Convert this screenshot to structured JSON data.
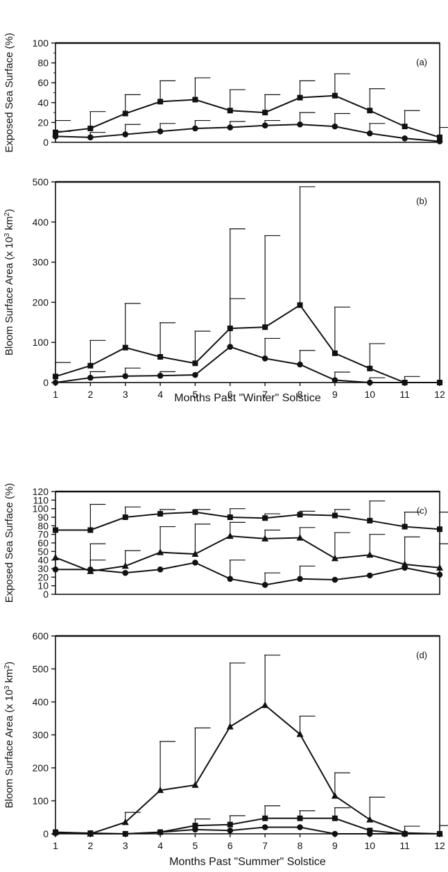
{
  "chart_data": [
    {
      "id": "a",
      "type": "line",
      "panel_label": "(a)",
      "ylabel": "Exposed Sea Surface (%)",
      "xlabel": "",
      "ylim": [
        0,
        100
      ],
      "yticks": [
        0,
        20,
        40,
        60,
        80,
        100
      ],
      "x": [
        1,
        2,
        3,
        4,
        5,
        6,
        7,
        8,
        9,
        10,
        11,
        12
      ],
      "series": [
        {
          "marker": "square",
          "values": [
            10,
            14,
            29,
            41,
            43,
            32,
            30,
            45,
            47,
            32,
            16,
            5
          ],
          "err": [
            12,
            17,
            19,
            21,
            22,
            21,
            18,
            17,
            22,
            22,
            16,
            10
          ]
        },
        {
          "marker": "circle",
          "values": [
            6,
            5,
            8,
            11,
            14,
            15,
            17,
            18,
            16,
            9,
            4,
            1
          ],
          "err": [
            5,
            5,
            10,
            8,
            8,
            6,
            5,
            12,
            13,
            10,
            0,
            0
          ]
        }
      ]
    },
    {
      "id": "b",
      "type": "line",
      "panel_label": "(b)",
      "ylabel": "Bloom Surface Area (x 10³ km²)",
      "xlabel": "Months Past \"Winter\" Solstice",
      "ylim": [
        0,
        500
      ],
      "yticks": [
        0,
        100,
        200,
        300,
        400,
        500
      ],
      "x": [
        1,
        2,
        3,
        4,
        5,
        6,
        7,
        8,
        9,
        10,
        11,
        12
      ],
      "series": [
        {
          "marker": "square",
          "values": [
            15,
            42,
            87,
            64,
            48,
            135,
            138,
            193,
            73,
            35,
            0,
            0
          ],
          "err": [
            35,
            63,
            110,
            85,
            80,
            248,
            228,
            295,
            115,
            62,
            15,
            0
          ]
        },
        {
          "marker": "circle",
          "values": [
            0,
            12,
            16,
            17,
            19,
            89,
            60,
            45,
            6,
            0,
            0,
            0
          ],
          "err": [
            0,
            15,
            20,
            10,
            0,
            120,
            50,
            35,
            20,
            12,
            0,
            0
          ]
        }
      ]
    },
    {
      "id": "c",
      "type": "line",
      "panel_label": "(c)",
      "ylabel": "Exposed Sea Surface (%)",
      "xlabel": "",
      "ylim": [
        0,
        120
      ],
      "yticks": [
        0,
        10,
        20,
        30,
        40,
        50,
        60,
        70,
        80,
        90,
        100,
        110,
        120
      ],
      "x": [
        1,
        2,
        3,
        4,
        5,
        6,
        7,
        8,
        9,
        10,
        11,
        12
      ],
      "series": [
        {
          "marker": "square",
          "values": [
            75,
            75,
            90,
            94,
            96,
            90,
            89,
            93,
            92,
            86,
            79,
            76
          ],
          "err": [
            0,
            30,
            12,
            5,
            3,
            10,
            5,
            4,
            7,
            23,
            17,
            20
          ]
        },
        {
          "marker": "triangle",
          "values": [
            43,
            27,
            33,
            49,
            47,
            68,
            65,
            66,
            42,
            46,
            35,
            31
          ],
          "err": [
            0,
            13,
            18,
            30,
            35,
            16,
            10,
            12,
            30,
            24,
            32,
            28
          ]
        },
        {
          "marker": "circle",
          "values": [
            29,
            29,
            25,
            29,
            37,
            18,
            11,
            18,
            17,
            22,
            31,
            23
          ],
          "err": [
            0,
            30,
            0,
            0,
            0,
            22,
            14,
            15,
            0,
            0,
            0,
            0
          ]
        }
      ]
    },
    {
      "id": "d",
      "type": "line",
      "panel_label": "(d)",
      "ylabel": "Bloom Surface Area (x 10³ km²)",
      "xlabel": "Months Past \"Summer\" Solstice",
      "ylim": [
        0,
        600
      ],
      "yticks": [
        0,
        100,
        200,
        300,
        400,
        500,
        600
      ],
      "x": [
        1,
        2,
        3,
        4,
        5,
        6,
        7,
        8,
        9,
        10,
        11,
        12
      ],
      "series": [
        {
          "marker": "triangle",
          "values": [
            5,
            0,
            35,
            132,
            148,
            325,
            390,
            302,
            115,
            43,
            3,
            0
          ],
          "err": [
            0,
            0,
            30,
            148,
            173,
            193,
            152,
            55,
            70,
            68,
            20,
            25
          ]
        },
        {
          "marker": "square",
          "values": [
            5,
            2,
            0,
            5,
            25,
            28,
            47,
            47,
            47,
            10,
            0,
            0
          ],
          "err": [
            0,
            0,
            0,
            0,
            20,
            27,
            38,
            23,
            32,
            0,
            0,
            0
          ]
        },
        {
          "marker": "circle",
          "values": [
            2,
            0,
            0,
            5,
            13,
            10,
            20,
            20,
            0,
            0,
            0,
            0
          ],
          "err": [
            0,
            0,
            0,
            0,
            0,
            0,
            0,
            0,
            0,
            0,
            0,
            0
          ]
        }
      ]
    }
  ]
}
